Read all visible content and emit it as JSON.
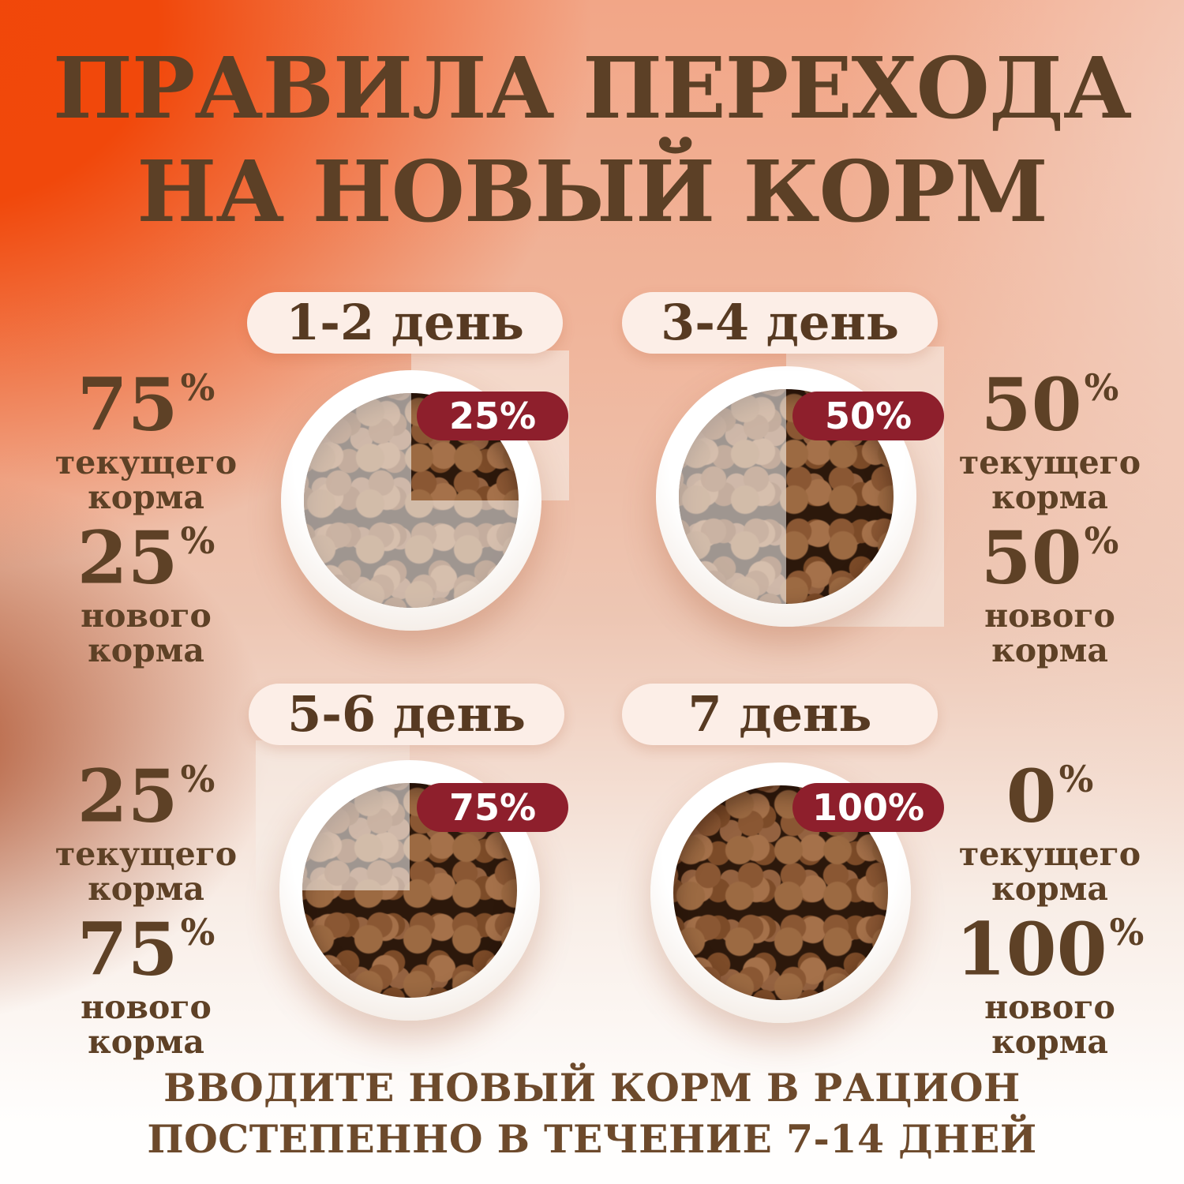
{
  "title": {
    "line1": "ПРАВИЛА ПЕРЕХОДА",
    "line2": "НА НОВЫЙ КОРМ"
  },
  "percent_sign": "%",
  "panels": [
    {
      "day_label": "1-2 день",
      "new_food_badge": "25%",
      "current_food": {
        "value": "75",
        "caption": "текущего корма"
      },
      "new_food": {
        "value": "25",
        "caption": "нового корма"
      }
    },
    {
      "day_label": "3-4 день",
      "new_food_badge": "50%",
      "current_food": {
        "value": "50",
        "caption": "текущего корма"
      },
      "new_food": {
        "value": "50",
        "caption": "нового корма"
      }
    },
    {
      "day_label": "5-6 день",
      "new_food_badge": "75%",
      "current_food": {
        "value": "25",
        "caption": "текущего корма"
      },
      "new_food": {
        "value": "75",
        "caption": "нового корма"
      }
    },
    {
      "day_label": "7 день",
      "new_food_badge": "100%",
      "current_food": {
        "value": "0",
        "caption": "текущего корма"
      },
      "new_food": {
        "value": "100",
        "caption": "нового корма"
      }
    }
  ],
  "footer": {
    "line1": "ВВОДИТЕ НОВЫЙ КОРМ В РАЦИОН",
    "line2": "ПОСТЕПЕННО В ТЕЧЕНИЕ 7-14 ДНЕЙ"
  },
  "colors": {
    "accent_red": "#8e1f2c",
    "text_brown": "#5e4126",
    "background_orange": "#f1470a",
    "background_pink": "#f4d7ca",
    "pill_cream": "#fceee7"
  }
}
